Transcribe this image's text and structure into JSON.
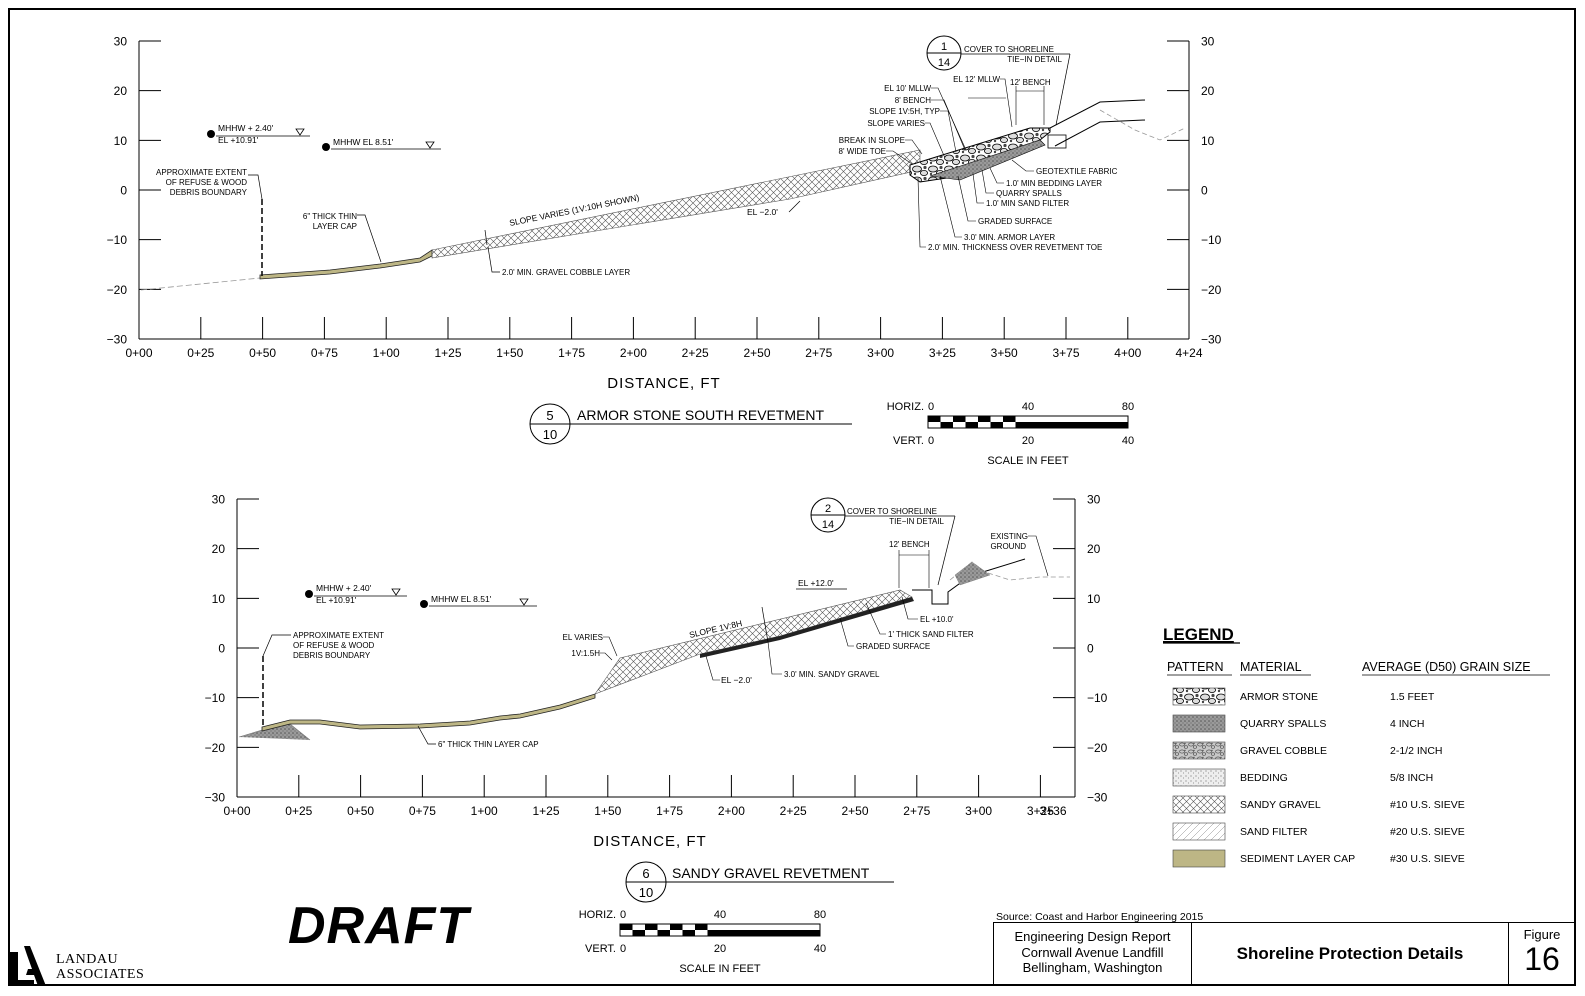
{
  "diagram_top": {
    "y_ticks": [
      "30",
      "20",
      "10",
      "0",
      "−10",
      "−20",
      "−30"
    ],
    "x_ticks": [
      "0+00",
      "0+25",
      "0+50",
      "0+75",
      "1+00",
      "1+25",
      "1+50",
      "1+75",
      "2+00",
      "2+25",
      "2+50",
      "2+75",
      "3+00",
      "3+25",
      "3+50",
      "3+75",
      "4+00",
      "4+24"
    ],
    "x_axis_label": "DISTANCE, FT",
    "callout": {
      "num": "5",
      "den": "10",
      "title": "ARMOR STONE SOUTH REVETMENT"
    },
    "detail_bubble": {
      "num": "1",
      "den": "14",
      "text": [
        "COVER TO SHORELINE",
        "TIE−IN DETAIL"
      ]
    },
    "mhhw_left": {
      "line1": "MHHW + 2.40'",
      "line2": "EL +10.91'"
    },
    "mhhw_right": "MHHW EL 8.51'",
    "debris_note": [
      "APPROXIMATE EXTENT",
      "OF REFUSE & WOOD",
      "DEBRIS BOUNDARY"
    ],
    "thin_cap_note": [
      "6\" THICK THIN",
      "LAYER CAP"
    ],
    "slope_note": "SLOPE VARIES (1V:10H SHOWN)",
    "gravel_note": "2.0' MIN. GRAVEL COBBLE LAYER",
    "el_minus2": "EL −2.0'",
    "labels_left_top": [
      "EL 12' MLLW",
      "EL 10' MLLW",
      "8' BENCH",
      "SLOPE 1V:5H, TYP",
      "SLOPE VARIES",
      "BREAK IN SLOPE",
      "8' WIDE TOE"
    ],
    "bench_12": "12' BENCH",
    "labels_right": [
      "GEOTEXTILE FABRIC",
      "1.0' MIN BEDDING LAYER",
      "QUARRY SPALLS",
      "1.0' MIN SAND FILTER",
      "GRADED SURFACE",
      "3.0' MIN. ARMOR LAYER",
      "2.0' MIN. THICKNESS OVER REVETMENT TOE"
    ],
    "scale": {
      "horiz_label": "HORIZ.",
      "horiz": [
        "0",
        "40",
        "80"
      ],
      "vert_label": "VERT.",
      "vert": [
        "0",
        "20",
        "40"
      ],
      "caption": "SCALE IN FEET"
    }
  },
  "diagram_bottom": {
    "y_ticks": [
      "30",
      "20",
      "10",
      "0",
      "−10",
      "−20",
      "−30"
    ],
    "x_ticks": [
      "0+00",
      "0+25",
      "0+50",
      "0+75",
      "1+00",
      "1+25",
      "1+50",
      "1+75",
      "2+00",
      "2+25",
      "2+50",
      "2+75",
      "3+00",
      "3+25",
      "3+36"
    ],
    "x_axis_label": "DISTANCE, FT",
    "callout": {
      "num": "6",
      "den": "10",
      "title": "SANDY GRAVEL REVETMENT"
    },
    "detail_bubble": {
      "num": "2",
      "den": "14",
      "text": [
        "COVER TO SHORELINE",
        "TIE−IN DETAIL"
      ]
    },
    "mhhw_left": {
      "line1": "MHHW + 2.40'",
      "line2": "EL +10.91'"
    },
    "mhhw_right": "MHHW EL 8.51'",
    "debris_note": [
      "APPROXIMATE EXTENT",
      "OF REFUSE & WOOD",
      "DEBRIS BOUNDARY"
    ],
    "thin_cap_note": "6\" THICK THIN LAYER CAP",
    "el_varies": [
      "EL VARIES",
      "1V:1.5H"
    ],
    "slope_note": "SLOPE 1V:8H",
    "el_plus12": "EL +12.0'",
    "bench_12": "12' BENCH",
    "existing_ground": [
      "EXISTING",
      "GROUND"
    ],
    "el_plus10": "EL +10.0'",
    "sand_filter": "1' THICK SAND FILTER",
    "graded_surface": "GRADED SURFACE",
    "el_minus2": "EL −2.0'",
    "sandy_gravel_min": "3.0' MIN. SANDY GRAVEL",
    "scale": {
      "horiz_label": "HORIZ.",
      "horiz": [
        "0",
        "40",
        "80"
      ],
      "vert_label": "VERT.",
      "vert": [
        "0",
        "20",
        "40"
      ],
      "caption": "SCALE IN FEET"
    }
  },
  "legend": {
    "title": "LEGEND",
    "headers": [
      "PATTERN",
      "MATERIAL",
      "AVERAGE (D50) GRAIN SIZE"
    ],
    "rows": [
      {
        "material": "ARMOR STONE",
        "size": "1.5 FEET",
        "pattern": "armor"
      },
      {
        "material": "QUARRY SPALLS",
        "size": "4 INCH",
        "pattern": "quarry"
      },
      {
        "material": "GRAVEL COBBLE",
        "size": "2-1/2 INCH",
        "pattern": "cobble"
      },
      {
        "material": "BEDDING",
        "size": "5/8 INCH",
        "pattern": "bedding"
      },
      {
        "material": "SANDY GRAVEL",
        "size": "#10 U.S. SIEVE",
        "pattern": "sandy"
      },
      {
        "material": "SAND FILTER",
        "size": "#20 U.S. SIEVE",
        "pattern": "sand"
      },
      {
        "material": "SEDIMENT LAYER CAP",
        "size": "#30 U.S. SIEVE",
        "pattern": "sediment"
      }
    ]
  },
  "draft_label": "DRAFT",
  "logo": {
    "line1": "LANDAU",
    "line2": "ASSOCIATES"
  },
  "source": "Source: Coast and Harbor Engineering 2015",
  "title_block": {
    "report_lines": [
      "Engineering Design Report",
      "Cornwall Avenue Landfill",
      "Bellingham, Washington"
    ],
    "title": "Shoreline Protection Details",
    "figure_label": "Figure",
    "figure_number": "16"
  },
  "colors": {
    "sediment": "#bdb685",
    "ink": "#000000",
    "existing": "#9a9a9a"
  }
}
